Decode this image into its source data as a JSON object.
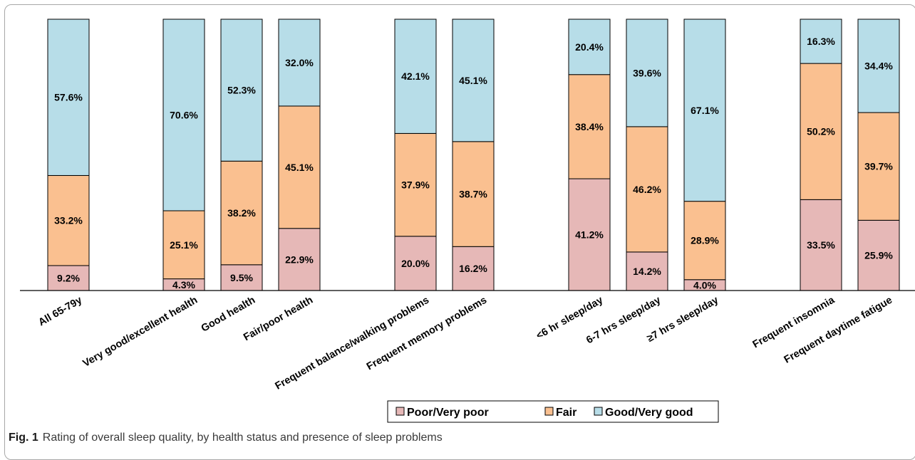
{
  "caption": {
    "label": "Fig. 1",
    "text": "Rating of overall sleep quality, by health status and presence of sleep problems"
  },
  "chart_data": {
    "type": "bar",
    "stacked": true,
    "percent": true,
    "categories": [
      "All 65-79y",
      "Very good/excellent health",
      "Good health",
      "Fair/poor health",
      "Frequent balance/walking problems",
      "Frequent memory problems",
      "<6 hr sleep/day",
      "6-7 hrs sleep/day",
      "≥7 hrs sleep/day",
      "Frequent insomnia",
      "Frequent daytime fatigue"
    ],
    "groups": [
      [
        0
      ],
      [
        1,
        2,
        3
      ],
      [
        4,
        5
      ],
      [
        6,
        7,
        8
      ],
      [
        9,
        10
      ]
    ],
    "series": [
      {
        "name": "Poor/Very poor",
        "color": "#e6b8b7",
        "values": [
          9.2,
          4.3,
          9.5,
          22.9,
          20.0,
          16.2,
          41.2,
          14.2,
          4.0,
          33.5,
          25.9
        ],
        "labels": [
          "9.2%",
          "4.3%",
          "9.5%",
          "22.9%",
          "20.0%",
          "16.2%",
          "41.2%",
          "14.2%",
          "4.0%",
          "33.5%",
          "25.9%"
        ]
      },
      {
        "name": "Fair",
        "color": "#fac090",
        "values": [
          33.2,
          25.1,
          38.2,
          45.1,
          37.9,
          38.7,
          38.4,
          46.2,
          28.9,
          50.2,
          39.7
        ],
        "labels": [
          "33.2%",
          "25.1%",
          "38.2%",
          "45.1%",
          "37.9%",
          "38.7%",
          "38.4%",
          "46.2%",
          "28.9%",
          "50.2%",
          "39.7%"
        ]
      },
      {
        "name": "Good/Very good",
        "color": "#b7dde8",
        "values": [
          57.6,
          70.6,
          52.3,
          32.0,
          42.1,
          45.1,
          20.4,
          39.6,
          67.1,
          16.3,
          34.4
        ],
        "labels": [
          "57.6%",
          "70.6%",
          "52.3%",
          "32.0%",
          "42.1%",
          "45.1%",
          "20.4%",
          "39.6%",
          "67.1%",
          "16.3%",
          "34.4%"
        ]
      }
    ],
    "ylim": [
      0,
      100
    ],
    "grid": false,
    "legend_position": "bottom"
  }
}
